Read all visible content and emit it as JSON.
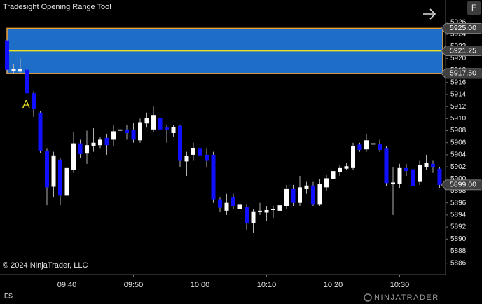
{
  "chart_data": {
    "type": "candlestick",
    "title": "Tradesight Opening Range Tool",
    "copyright": "© 2024 NinjaTrader, LLC",
    "instrument": "ES",
    "logo": "NINJATRADER",
    "button": "F",
    "annotation": "A",
    "x": [
      "09:31",
      "09:32",
      "09:33",
      "09:34",
      "09:35",
      "09:36",
      "09:37",
      "09:38",
      "09:39",
      "09:40",
      "09:41",
      "09:42",
      "09:43",
      "09:44",
      "09:45",
      "09:46",
      "09:47",
      "09:48",
      "09:49",
      "09:50",
      "09:51",
      "09:52",
      "09:53",
      "09:54",
      "09:55",
      "09:56",
      "09:57",
      "09:58",
      "09:59",
      "10:00",
      "10:01",
      "10:02",
      "10:03",
      "10:04",
      "10:05",
      "10:06",
      "10:07",
      "10:08",
      "10:09",
      "10:10",
      "10:11",
      "10:12",
      "10:13",
      "10:14",
      "10:15",
      "10:16",
      "10:17",
      "10:18",
      "10:19",
      "10:20",
      "10:21",
      "10:22",
      "10:23",
      "10:24",
      "10:25",
      "10:26",
      "10:27",
      "10:28",
      "10:29",
      "10:30",
      "10:31",
      "10:32",
      "10:33",
      "10:34",
      "10:35",
      "10:36"
    ],
    "open": [
      5923.0,
      5917.9,
      5917.8,
      5918.1,
      5914.2,
      5911.0,
      5904.7,
      5898.7,
      5903.2,
      5897.2,
      5901.5,
      5905.9,
      5904.2,
      5905.5,
      5905.6,
      5906.8,
      5906.5,
      5908.0,
      5908.2,
      5908.1,
      5906.4,
      5909.2,
      5908.2,
      5910.1,
      5908.5,
      5907.6,
      5908.8,
      5902.9,
      5904.0,
      5905.0,
      5904.0,
      5904.0,
      5896.6,
      5894.7,
      5897.0,
      5895.0,
      5895.3,
      5892.7,
      5894.6,
      5894.4,
      5894.8,
      5894.7,
      5895.5,
      5898.3,
      5896.0,
      5898.3,
      5898.9,
      5895.8,
      5898.6,
      5900.0,
      5901.1,
      5901.7,
      5901.8,
      5905.7,
      5904.9,
      5905.7,
      5905.8,
      5905.0,
      5899.1,
      5899.2,
      5901.8,
      5901.6,
      5899.5,
      5901.9,
      5902.5,
      5901.7
    ],
    "high": [
      5923.2,
      5919.0,
      5920.0,
      5918.5,
      5914.5,
      5911.2,
      5905.0,
      5904.5,
      5903.5,
      5902.5,
      5907.7,
      5906.5,
      5908.0,
      5908.4,
      5907.0,
      5907.5,
      5909.0,
      5908.5,
      5909.0,
      5909.3,
      5910.0,
      5911.0,
      5912.0,
      5912.5,
      5909.0,
      5909.0,
      5909.0,
      5904.5,
      5906.0,
      5905.5,
      5905.0,
      5904.5,
      5897.0,
      5897.5,
      5897.5,
      5896.5,
      5895.8,
      5895.0,
      5896.0,
      5895.5,
      5895.5,
      5896.5,
      5899.0,
      5899.0,
      5900.5,
      5899.5,
      5899.5,
      5900.0,
      5900.6,
      5901.8,
      5902.3,
      5902.6,
      5906.0,
      5906.0,
      5907.5,
      5906.5,
      5906.5,
      5905.5,
      5902.0,
      5902.5,
      5902.5,
      5902.0,
      5903.0,
      5904.0,
      5903.0,
      5902.0
    ],
    "low": [
      5917.6,
      5917.5,
      5917.5,
      5914.0,
      5910.3,
      5904.3,
      5895.6,
      5897.0,
      5895.6,
      5896.5,
      5901.0,
      5903.5,
      5902.5,
      5904.5,
      5905.0,
      5904.0,
      5905.5,
      5907.5,
      5906.5,
      5906.0,
      5906.0,
      5908.5,
      5907.8,
      5908.0,
      5906.0,
      5907.0,
      5902.0,
      5900.5,
      5903.0,
      5903.0,
      5902.0,
      5896.0,
      5894.5,
      5894.0,
      5895.0,
      5894.5,
      5891.5,
      5891.0,
      5894.0,
      5893.0,
      5893.5,
      5894.0,
      5895.0,
      5895.5,
      5895.5,
      5897.5,
      5895.5,
      5895.5,
      5898.0,
      5899.0,
      5900.5,
      5901.5,
      5901.5,
      5904.5,
      5904.5,
      5905.0,
      5904.5,
      5898.8,
      5894.0,
      5898.5,
      5900.5,
      5898.5,
      5899.0,
      5901.5,
      5901.0,
      5898.5
    ],
    "close": [
      5918.1,
      5918.2,
      5918.3,
      5914.2,
      5911.6,
      5904.7,
      5898.6,
      5903.9,
      5897.2,
      5901.8,
      5905.9,
      5904.1,
      5905.6,
      5906.0,
      5906.5,
      5905.6,
      5907.9,
      5908.2,
      5907.6,
      5906.5,
      5909.4,
      5910.1,
      5910.6,
      5908.2,
      5908.2,
      5908.6,
      5903.0,
      5903.8,
      5905.1,
      5903.9,
      5903.0,
      5896.6,
      5895.2,
      5896.0,
      5895.5,
      5895.8,
      5892.7,
      5894.6,
      5894.7,
      5894.8,
      5895.0,
      5895.6,
      5898.3,
      5896.0,
      5898.6,
      5898.9,
      5895.8,
      5899.2,
      5900.1,
      5901.3,
      5901.8,
      5902.1,
      5905.5,
      5904.8,
      5906.4,
      5905.9,
      5904.8,
      5899.3,
      5899.4,
      5901.8,
      5901.3,
      5898.8,
      5902.3,
      5902.6,
      5901.9,
      5899.0
    ],
    "up_color": "#ffffff",
    "down_color": "#1010ff",
    "wick_color": "#b0b0b0",
    "ylim": [
      5884.1,
      5929.7
    ],
    "yticks": [
      5886,
      5888,
      5890,
      5892,
      5894,
      5896,
      5898,
      5900,
      5902,
      5904,
      5906,
      5908,
      5910,
      5912,
      5914,
      5916,
      5918,
      5920,
      5922,
      5924,
      5926
    ],
    "xticks": [
      "09:40",
      "09:50",
      "10:00",
      "10:10",
      "10:20",
      "10:30"
    ],
    "opening_range": {
      "high": 5925,
      "mid": 5921.25,
      "low": 5917.5,
      "fill": "#1e6ec8",
      "border": "#f0a030",
      "mid_color": "#e8e020"
    },
    "price_markers": [
      {
        "value": 5925,
        "label": "5925.00"
      },
      {
        "value": 5921.25,
        "label": "5921.25"
      },
      {
        "value": 5917.5,
        "label": "5917.50"
      },
      {
        "value": 5899,
        "label": "5899.00"
      }
    ]
  }
}
